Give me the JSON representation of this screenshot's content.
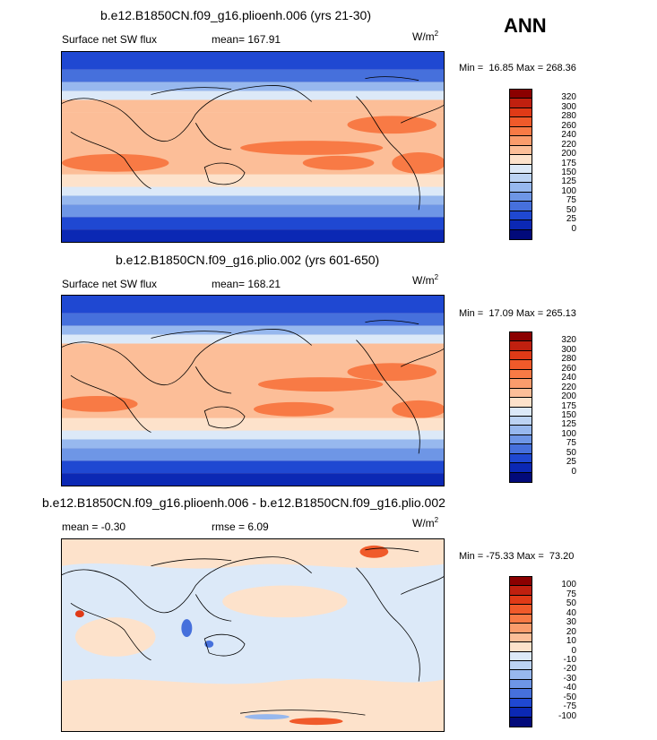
{
  "season": "ANN",
  "units_main": "W/m",
  "units_sup": "2",
  "panels": [
    {
      "title": "b.e12.B1850CN.f09_g16.plioenh.006 (yrs 21-30)",
      "variable": "Surface net SW flux",
      "stat1": "mean= 167.91",
      "stat2": "",
      "min_max": "Min =  16.85 Max = 268.36",
      "ticks": [
        "320",
        "300",
        "280",
        "260",
        "240",
        "220",
        "200",
        "175",
        "150",
        "125",
        "100",
        "75",
        "50",
        "25",
        "0"
      ]
    },
    {
      "title": "b.e12.B1850CN.f09_g16.plio.002 (yrs 601-650)",
      "variable": "Surface net SW flux",
      "stat1": "mean= 168.21",
      "stat2": "",
      "min_max": "Min =  17.09 Max = 265.13",
      "ticks": [
        "320",
        "300",
        "280",
        "260",
        "240",
        "220",
        "200",
        "175",
        "150",
        "125",
        "100",
        "75",
        "50",
        "25",
        "0"
      ]
    },
    {
      "title": "b.e12.B1850CN.f09_g16.plioenh.006 - b.e12.B1850CN.f09_g16.plio.002",
      "variable": "",
      "stat1": "mean =  -0.30",
      "stat2": "rmse =    6.09",
      "min_max": "Min = -75.33 Max =  73.20",
      "ticks": [
        "100",
        "75",
        "50",
        "40",
        "30",
        "20",
        "10",
        "0",
        "-10",
        "-20",
        "-30",
        "-40",
        "-50",
        "-75",
        "-100"
      ]
    }
  ],
  "colors": {
    "abs_scale": [
      "#8b0000",
      "#c0200f",
      "#e03a17",
      "#f05a2a",
      "#f87a45",
      "#fa9c6c",
      "#fcbe98",
      "#fde2cb",
      "#dce9f8",
      "#bcd3f3",
      "#97b8ee",
      "#6e96e6",
      "#4670dc",
      "#1f48d2",
      "#0b28b4",
      "#020a7a"
    ],
    "diff_scale": [
      "#8b0000",
      "#c0200f",
      "#e03a17",
      "#f05a2a",
      "#f87a45",
      "#fa9c6c",
      "#fcbe98",
      "#fde2cb",
      "#dce9f8",
      "#bcd3f3",
      "#97b8ee",
      "#6e96e6",
      "#4670dc",
      "#1f48d2",
      "#0b28b4",
      "#020a7a"
    ]
  }
}
